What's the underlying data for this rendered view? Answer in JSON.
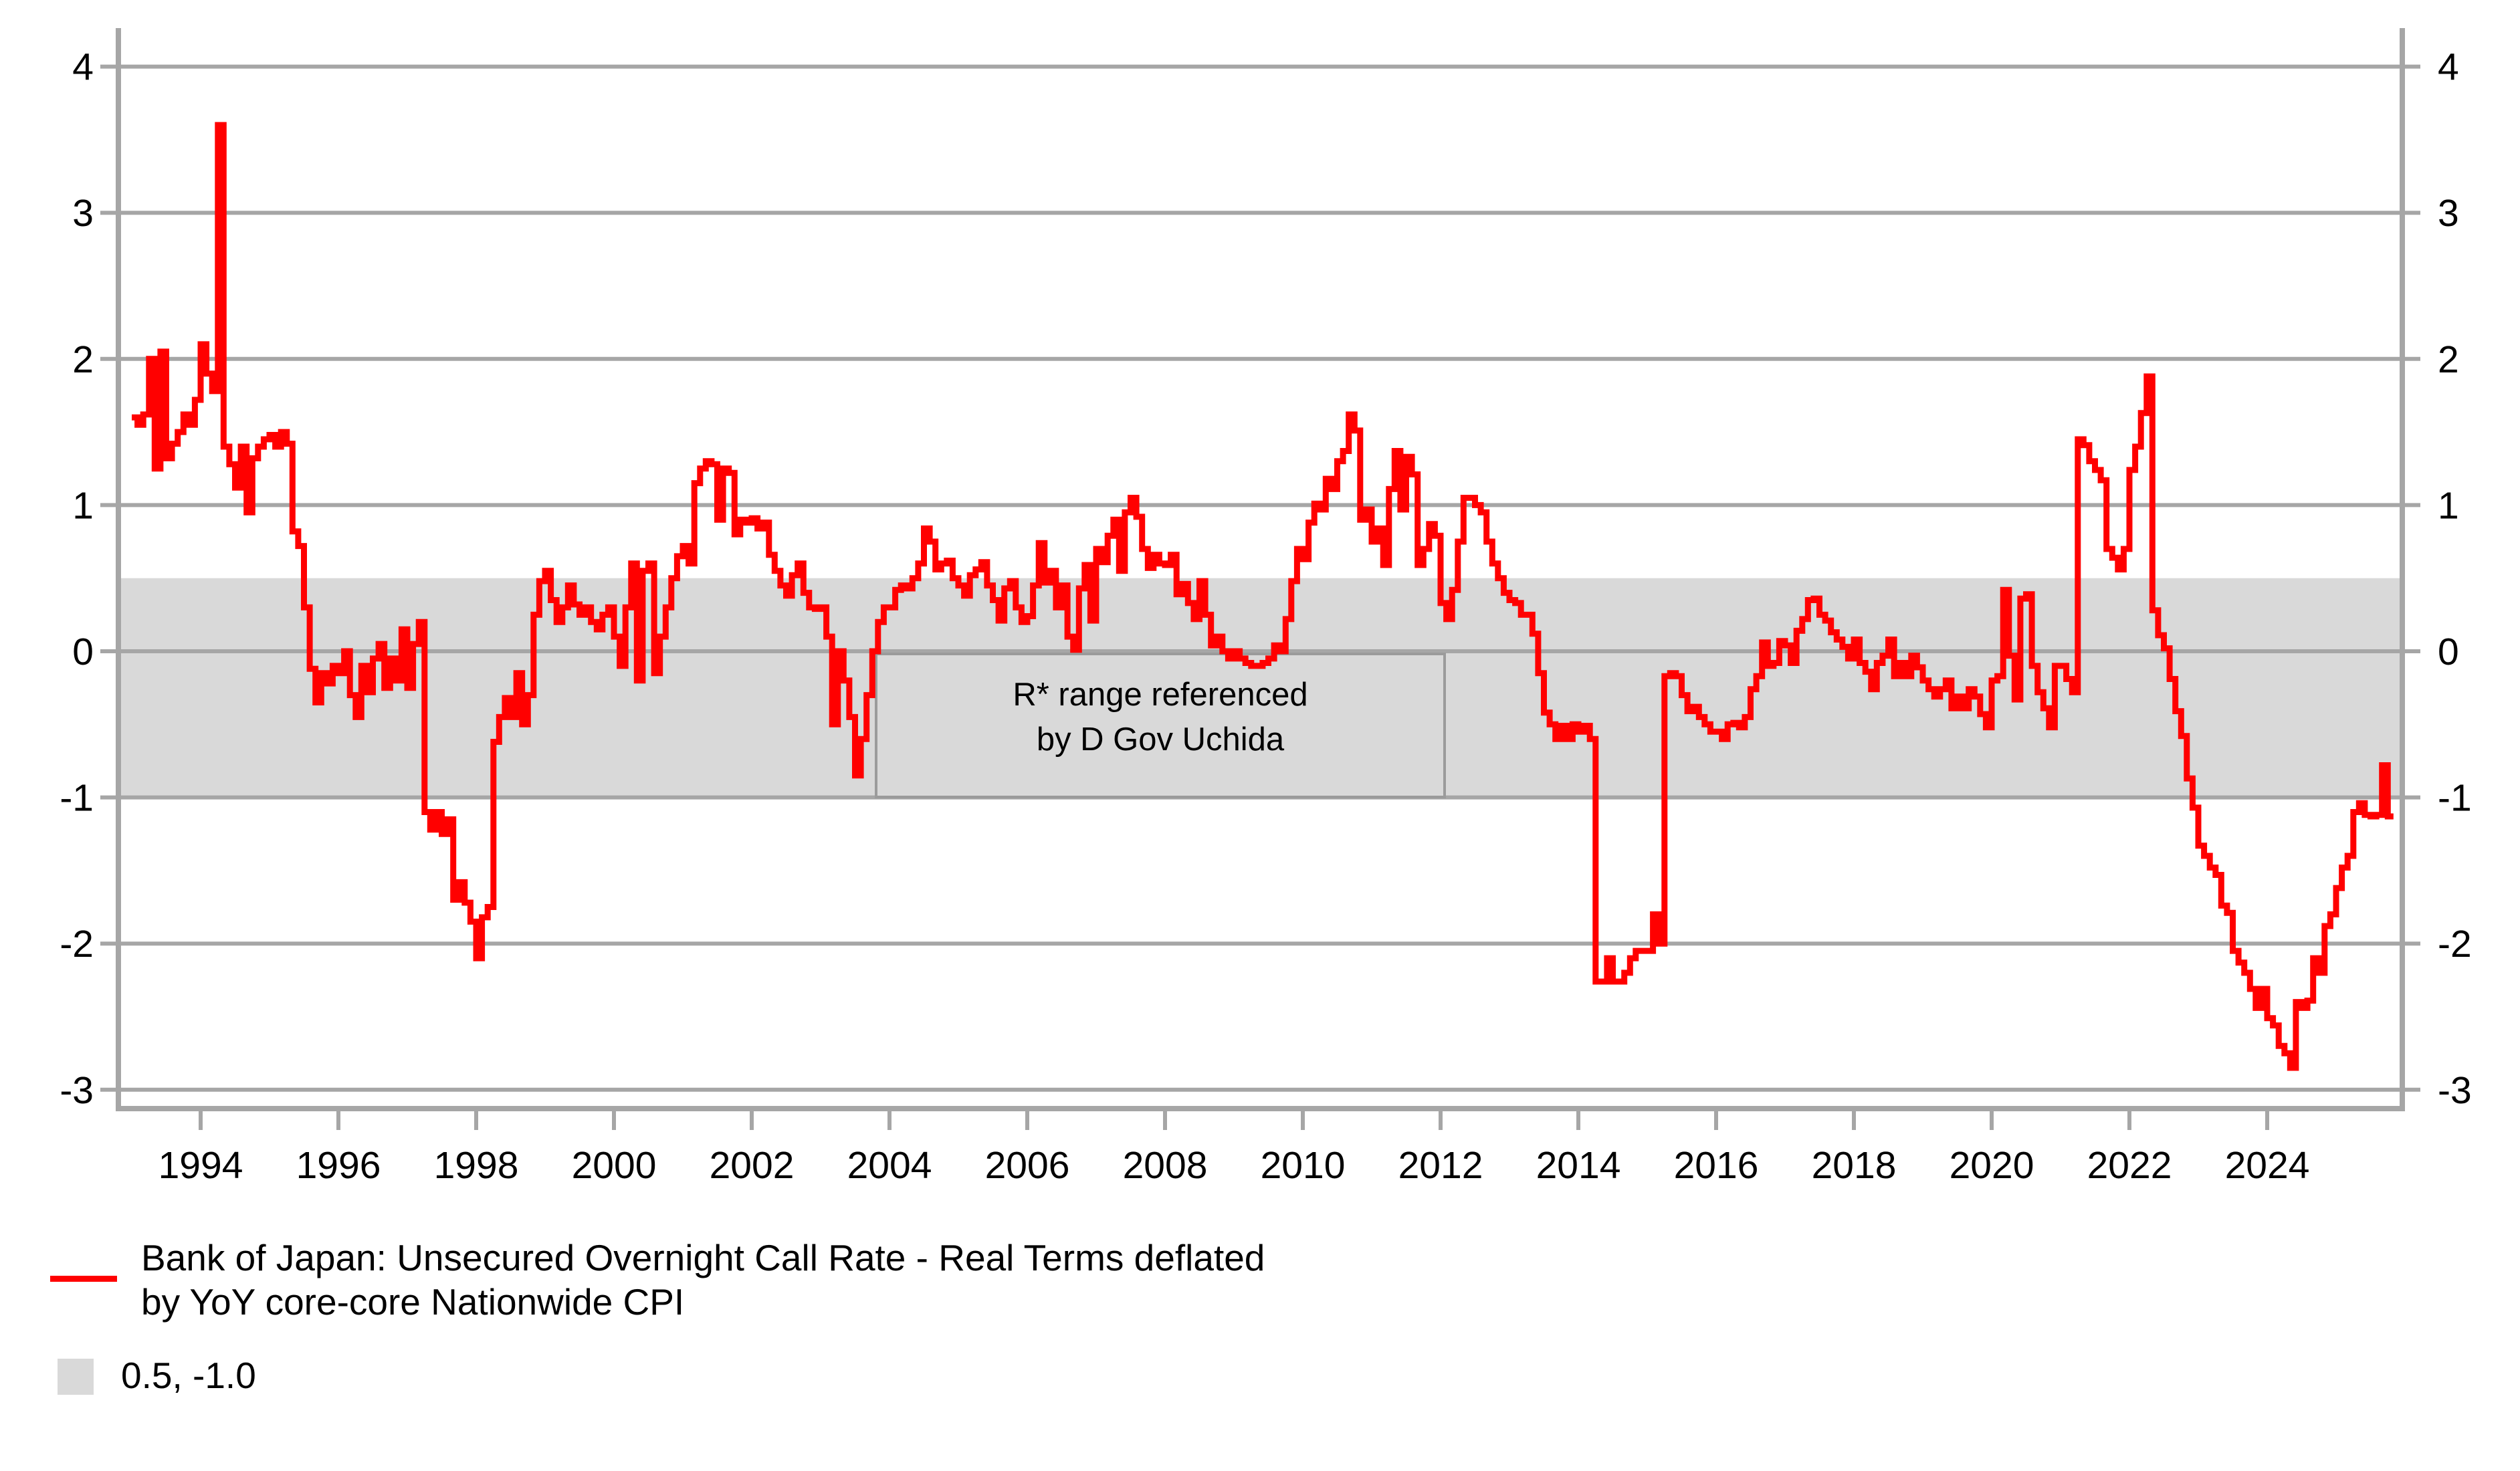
{
  "chart_data": {
    "type": "line",
    "title": "",
    "xlabel": "",
    "ylabel": "",
    "xlim": [
      1992.81,
      2025.96
    ],
    "ylim": [
      -3.13,
      4.26
    ],
    "grid": "horizontal",
    "y_ticks": [
      "4",
      "3",
      "2",
      "1",
      "0",
      "-1",
      "-2",
      "-3"
    ],
    "y_tick_values": [
      4,
      3,
      2,
      1,
      0,
      -1,
      -2,
      -3
    ],
    "x_ticks": [
      "1994",
      "1996",
      "1998",
      "2000",
      "2002",
      "2004",
      "2006",
      "2008",
      "2010",
      "2012",
      "2014",
      "2016",
      "2018",
      "2020",
      "2022",
      "2024"
    ],
    "x_tick_values": [
      1994,
      1996,
      1998,
      2000,
      2002,
      2004,
      2006,
      2008,
      2010,
      2012,
      2014,
      2016,
      2018,
      2020,
      2022,
      2024
    ],
    "band": {
      "from": 0.5,
      "to": -1.0,
      "color": "#d9d9d9",
      "label": "0.5, -1.0"
    },
    "annotation": {
      "line1": "R* range referenced",
      "line2": "by D Gov Uchida"
    },
    "series": [
      {
        "name": "Bank of Japan: Unsecured Overnight Call Rate - Real Terms deflated by YoY core-core Nationwide CPI",
        "color": "#ff0000",
        "frequency": "monthly",
        "start_year": 1993,
        "start_month": 1,
        "values": [
          1.6,
          1.55,
          1.62,
          2.0,
          1.25,
          2.05,
          1.32,
          1.42,
          1.5,
          1.62,
          1.55,
          1.72,
          2.1,
          1.9,
          1.78,
          3.6,
          1.4,
          1.28,
          1.12,
          1.4,
          0.95,
          1.32,
          1.4,
          1.45,
          1.48,
          1.4,
          1.5,
          1.42,
          0.82,
          0.72,
          0.3,
          -0.12,
          -0.35,
          -0.15,
          -0.22,
          -0.1,
          -0.15,
          0.0,
          -0.3,
          -0.45,
          -0.1,
          -0.28,
          -0.05,
          0.05,
          -0.25,
          -0.05,
          -0.2,
          0.15,
          -0.25,
          0.05,
          0.2,
          -1.1,
          -1.22,
          -1.1,
          -1.25,
          -1.15,
          -1.7,
          -1.58,
          -1.72,
          -1.85,
          -2.1,
          -1.82,
          -1.75,
          -0.62,
          -0.45,
          -0.32,
          -0.45,
          -0.15,
          -0.5,
          -0.3,
          0.25,
          0.48,
          0.55,
          0.35,
          0.2,
          0.3,
          0.45,
          0.32,
          0.25,
          0.3,
          0.2,
          0.15,
          0.25,
          0.3,
          0.1,
          -0.1,
          0.3,
          0.6,
          -0.2,
          0.55,
          0.6,
          -0.15,
          0.1,
          0.3,
          0.5,
          0.65,
          0.72,
          0.6,
          1.15,
          1.25,
          1.3,
          1.28,
          0.9,
          1.25,
          1.22,
          0.8,
          0.9,
          0.88,
          0.91,
          0.84,
          0.88,
          0.66,
          0.55,
          0.45,
          0.38,
          0.52,
          0.6,
          0.4,
          0.3,
          0.29,
          0.3,
          0.1,
          -0.5,
          0.0,
          -0.2,
          -0.45,
          -0.85,
          -0.6,
          -0.3,
          0.0,
          0.2,
          0.3,
          0.3,
          0.42,
          0.45,
          0.43,
          0.5,
          0.6,
          0.84,
          0.75,
          0.56,
          0.6,
          0.62,
          0.5,
          0.45,
          0.38,
          0.52,
          0.56,
          0.61,
          0.45,
          0.35,
          0.21,
          0.43,
          0.48,
          0.3,
          0.2,
          0.24,
          0.45,
          0.74,
          0.47,
          0.55,
          0.3,
          0.45,
          0.1,
          0.01,
          0.43,
          0.59,
          0.21,
          0.7,
          0.61,
          0.79,
          0.9,
          0.55,
          0.95,
          1.05,
          0.92,
          0.7,
          0.57,
          0.66,
          0.6,
          0.59,
          0.66,
          0.39,
          0.46,
          0.33,
          0.22,
          0.48,
          0.25,
          0.04,
          0.1,
          0.0,
          -0.05,
          0.0,
          -0.05,
          -0.08,
          -0.1,
          -0.1,
          -0.08,
          -0.05,
          0.04,
          0.0,
          0.22,
          0.48,
          0.7,
          0.63,
          0.88,
          1.01,
          0.97,
          1.18,
          1.11,
          1.3,
          1.37,
          1.62,
          1.51,
          0.9,
          0.97,
          0.75,
          0.84,
          0.59,
          1.11,
          1.37,
          0.97,
          1.33,
          1.21,
          0.59,
          0.7,
          0.87,
          0.79,
          0.33,
          0.22,
          0.42,
          0.75,
          1.05,
          1.05,
          1.0,
          0.95,
          0.75,
          0.6,
          0.5,
          0.4,
          0.35,
          0.33,
          0.25,
          0.25,
          0.12,
          -0.15,
          -0.42,
          -0.5,
          -0.6,
          -0.51,
          -0.6,
          -0.5,
          -0.55,
          -0.51,
          -0.6,
          -2.26,
          -2.26,
          -2.1,
          -2.26,
          -2.26,
          -2.2,
          -2.1,
          -2.05,
          -2.05,
          -2.05,
          -1.8,
          -2.0,
          -0.17,
          -0.15,
          -0.17,
          -0.3,
          -0.41,
          -0.38,
          -0.45,
          -0.5,
          -0.55,
          -0.55,
          -0.6,
          -0.5,
          -0.49,
          -0.52,
          -0.45,
          -0.26,
          -0.17,
          0.06,
          -0.1,
          -0.08,
          0.07,
          0.04,
          -0.08,
          0.14,
          0.22,
          0.35,
          0.36,
          0.25,
          0.21,
          0.13,
          0.08,
          0.03,
          -0.05,
          0.08,
          -0.08,
          -0.14,
          -0.26,
          -0.08,
          -0.03,
          0.08,
          -0.17,
          -0.08,
          -0.17,
          -0.03,
          -0.11,
          -0.2,
          -0.26,
          -0.31,
          -0.26,
          -0.2,
          -0.39,
          -0.31,
          -0.39,
          -0.26,
          -0.31,
          -0.43,
          -0.52,
          -0.2,
          -0.17,
          0.42,
          -0.03,
          -0.33,
          0.36,
          0.39,
          -0.1,
          -0.28,
          -0.39,
          -0.52,
          -0.1,
          -0.1,
          -0.19,
          -0.28,
          1.45,
          1.41,
          1.3,
          1.24,
          1.17,
          0.7,
          0.64,
          0.56,
          0.7,
          1.24,
          1.4,
          1.63,
          1.88,
          0.28,
          0.11,
          0.02,
          -0.19,
          -0.41,
          -0.58,
          -0.87,
          -1.07,
          -1.33,
          -1.4,
          -1.48,
          -1.53,
          -1.74,
          -1.79,
          -2.05,
          -2.13,
          -2.2,
          -2.31,
          -2.44,
          -2.31,
          -2.51,
          -2.56,
          -2.7,
          -2.75,
          -2.85,
          -2.4,
          -2.44,
          -2.39,
          -2.1,
          -2.2,
          -1.88,
          -1.8,
          -1.62,
          -1.48,
          -1.4,
          -1.1,
          -1.04,
          -1.12,
          -1.13,
          -1.12,
          -0.78,
          -1.13
        ]
      }
    ],
    "legend": {
      "series_label_line1": "Bank of Japan: Unsecured Overnight Call Rate - Real Terms deflated",
      "series_label_line2": "by YoY core-core Nationwide CPI",
      "band_label": "0.5, -1.0"
    },
    "colors": {
      "line": "#ff0000",
      "band": "#d9d9d9",
      "grid": "#a6a6a6",
      "axis": "#a6a6a6",
      "annotation_border": "#9b9b9b",
      "text": "#000000"
    }
  }
}
